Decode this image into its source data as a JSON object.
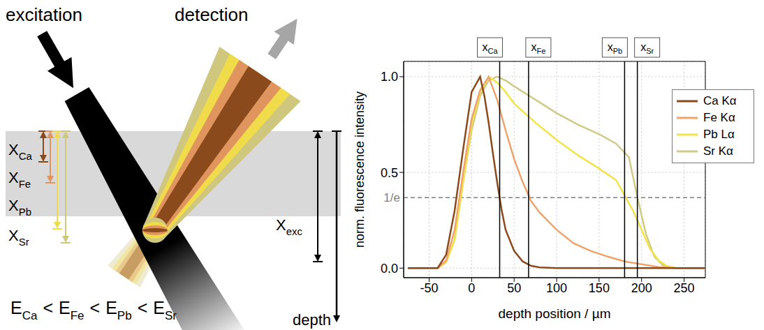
{
  "chart_data": {
    "type": "line",
    "x_label": "depth position / µm",
    "y_label": "norm. fluorescence intensity",
    "xlim": [
      -80,
      275
    ],
    "xticks": [
      -50,
      0,
      50,
      100,
      150,
      200,
      250
    ],
    "ylim": [
      -0.05,
      1.08
    ],
    "yticks": [
      {
        "value": 0,
        "label": "0.0"
      },
      {
        "value": 0.5,
        "label": "0.5"
      },
      {
        "value": 1,
        "label": "1.0"
      }
    ],
    "grid": true,
    "legend": "upper right",
    "series": [
      {
        "name": "Ca Kα",
        "color": "#8b4a1c",
        "x": [
          -75,
          -40,
          -30,
          -20,
          -10,
          0,
          10,
          15,
          20,
          25,
          30,
          35,
          40,
          50,
          60,
          70,
          80,
          100,
          275
        ],
        "values": [
          0,
          0,
          0.07,
          0.3,
          0.62,
          0.92,
          1.0,
          0.9,
          0.76,
          0.6,
          0.45,
          0.31,
          0.2,
          0.09,
          0.035,
          0.012,
          0.004,
          0,
          0
        ]
      },
      {
        "name": "Fe Kα",
        "color": "#eea36b",
        "x": [
          -75,
          -40,
          -30,
          -20,
          -10,
          0,
          10,
          20,
          30,
          40,
          50,
          60,
          70,
          80,
          100,
          120,
          140,
          160,
          180,
          200,
          220,
          240,
          275
        ],
        "values": [
          0,
          0,
          0.04,
          0.2,
          0.5,
          0.78,
          0.93,
          1.0,
          0.88,
          0.72,
          0.57,
          0.45,
          0.35,
          0.29,
          0.2,
          0.13,
          0.09,
          0.06,
          0.035,
          0.02,
          0.006,
          0,
          0
        ]
      },
      {
        "name": "Pb Lα",
        "color": "#f2e34c",
        "x": [
          -75,
          -40,
          -30,
          -20,
          -10,
          0,
          10,
          20,
          30,
          40,
          50,
          75,
          100,
          125,
          150,
          170,
          180,
          190,
          200,
          210,
          220,
          230,
          240,
          275
        ],
        "values": [
          0,
          0,
          0.03,
          0.15,
          0.45,
          0.75,
          0.92,
          1.0,
          0.97,
          0.92,
          0.86,
          0.76,
          0.67,
          0.59,
          0.52,
          0.46,
          0.38,
          0.3,
          0.2,
          0.1,
          0.04,
          0.01,
          0,
          0
        ]
      },
      {
        "name": "Sr Kα",
        "color": "#cfcb86",
        "x": [
          -75,
          -40,
          -30,
          -20,
          -10,
          0,
          10,
          20,
          30,
          40,
          50,
          75,
          100,
          125,
          150,
          170,
          185,
          195,
          205,
          215,
          225,
          240,
          275
        ],
        "values": [
          0,
          0,
          0.03,
          0.15,
          0.45,
          0.72,
          0.9,
          0.98,
          1.0,
          0.98,
          0.95,
          0.88,
          0.81,
          0.75,
          0.7,
          0.65,
          0.58,
          0.37,
          0.18,
          0.06,
          0.015,
          0,
          0
        ]
      }
    ],
    "reference_lines": [
      {
        "axis": "y",
        "value": 0.368,
        "label": "1/e",
        "line_style": "dashed",
        "color": "#7f7f7f"
      },
      {
        "axis": "x",
        "value": 33,
        "label": {
          "symbol": "x",
          "subscript": "Ca"
        },
        "line_style": "solid",
        "color": "#000000"
      },
      {
        "axis": "x",
        "value": 67,
        "label": {
          "symbol": "x",
          "subscript": "Fe"
        },
        "line_style": "solid",
        "color": "#000000"
      },
      {
        "axis": "x",
        "value": 180,
        "label": {
          "symbol": "x",
          "subscript": "Pb"
        },
        "line_style": "solid",
        "color": "#000000"
      },
      {
        "axis": "x",
        "value": 195,
        "label": {
          "symbol": "x",
          "subscript": "Sr"
        },
        "line_style": "solid",
        "color": "#000000"
      }
    ]
  },
  "diagram": {
    "excitation_label": "excitation",
    "detection_label": "detection",
    "layers": [
      {
        "symbol": "X",
        "subscript": "Ca",
        "color": "#8b4a1c"
      },
      {
        "symbol": "X",
        "subscript": "Fe",
        "color": "#e0955e"
      },
      {
        "symbol": "X",
        "subscript": "Pb",
        "color": "#f0dc4a"
      },
      {
        "symbol": "X",
        "subscript": "Sr",
        "color": "#cfc77e"
      }
    ],
    "excitation_depth": {
      "symbol": "X",
      "subscript": "exc"
    },
    "depth_label": "depth",
    "energy_order": {
      "terms": [
        {
          "symbol": "E",
          "subscript": "Ca"
        },
        {
          "symbol": "E",
          "subscript": "Fe"
        },
        {
          "symbol": "E",
          "subscript": "Pb"
        },
        {
          "symbol": "E",
          "subscript": "Sr"
        }
      ],
      "separator": "<"
    }
  }
}
